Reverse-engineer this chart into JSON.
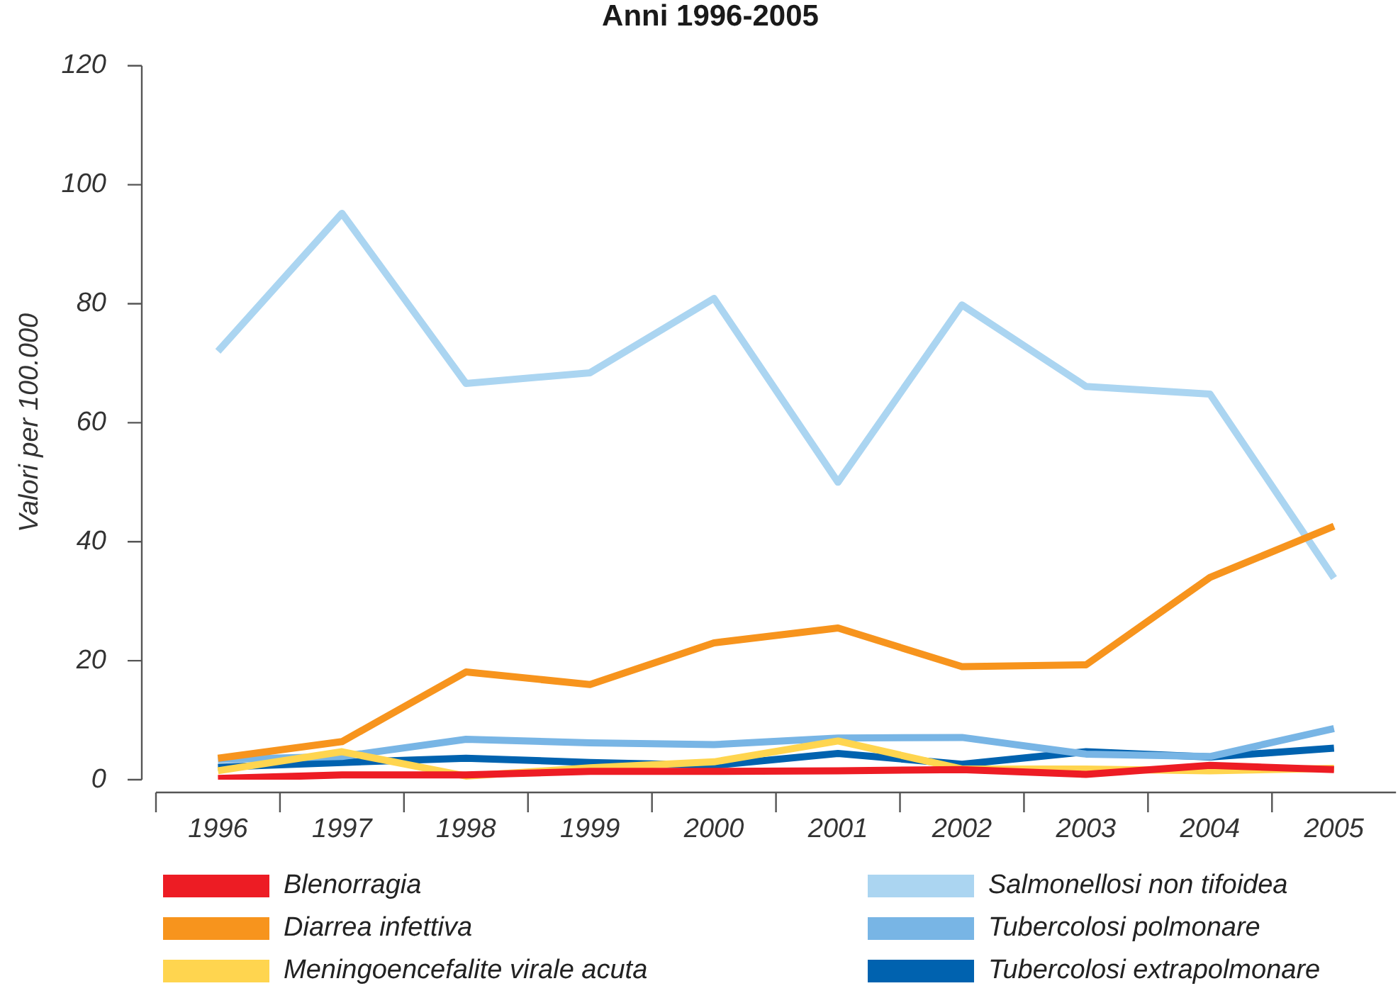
{
  "chart_data": {
    "type": "line",
    "title": "Anni 1996-2005",
    "ylabel": "Valori per 100.000",
    "categories": [
      "1996",
      "1997",
      "1998",
      "1999",
      "2000",
      "2001",
      "2002",
      "2003",
      "2004",
      "2005"
    ],
    "ylim": [
      0,
      120
    ],
    "yticks": [
      0,
      20,
      40,
      60,
      80,
      100,
      120
    ],
    "legend": "bottom",
    "series": [
      {
        "name": "Blenorragia",
        "color": "#ed1c24",
        "values": [
          0.2,
          0.8,
          0.8,
          1.4,
          1.4,
          1.5,
          1.7,
          0.9,
          2.4,
          1.7
        ]
      },
      {
        "name": "Diarrea infettiva",
        "color": "#f7941d",
        "values": [
          3.6,
          6.4,
          18.1,
          16.0,
          23.0,
          25.5,
          19.0,
          19.3,
          34.0,
          42.6
        ]
      },
      {
        "name": "Meningoencefalite virale acuta",
        "color": "#ffd54f",
        "values": [
          1.5,
          4.7,
          0.6,
          2.0,
          3.0,
          6.5,
          1.8,
          1.8,
          1.5,
          1.9
        ]
      },
      {
        "name": "Salmonellosi non tifoidea",
        "color": "#abd5f1",
        "values": [
          72.0,
          95.2,
          66.6,
          68.4,
          80.9,
          50.0,
          79.8,
          66.1,
          64.8,
          33.9
        ]
      },
      {
        "name": "Tubercolosi polmonare",
        "color": "#78b5e5",
        "values": [
          3.4,
          3.9,
          6.8,
          6.2,
          5.9,
          7.0,
          7.1,
          4.3,
          3.9,
          8.6
        ]
      },
      {
        "name": "Tubercolosi extrapolmonare",
        "color": "#0062af",
        "values": [
          2.1,
          2.9,
          3.6,
          2.9,
          2.4,
          4.4,
          2.6,
          4.7,
          3.8,
          5.3
        ]
      }
    ]
  }
}
